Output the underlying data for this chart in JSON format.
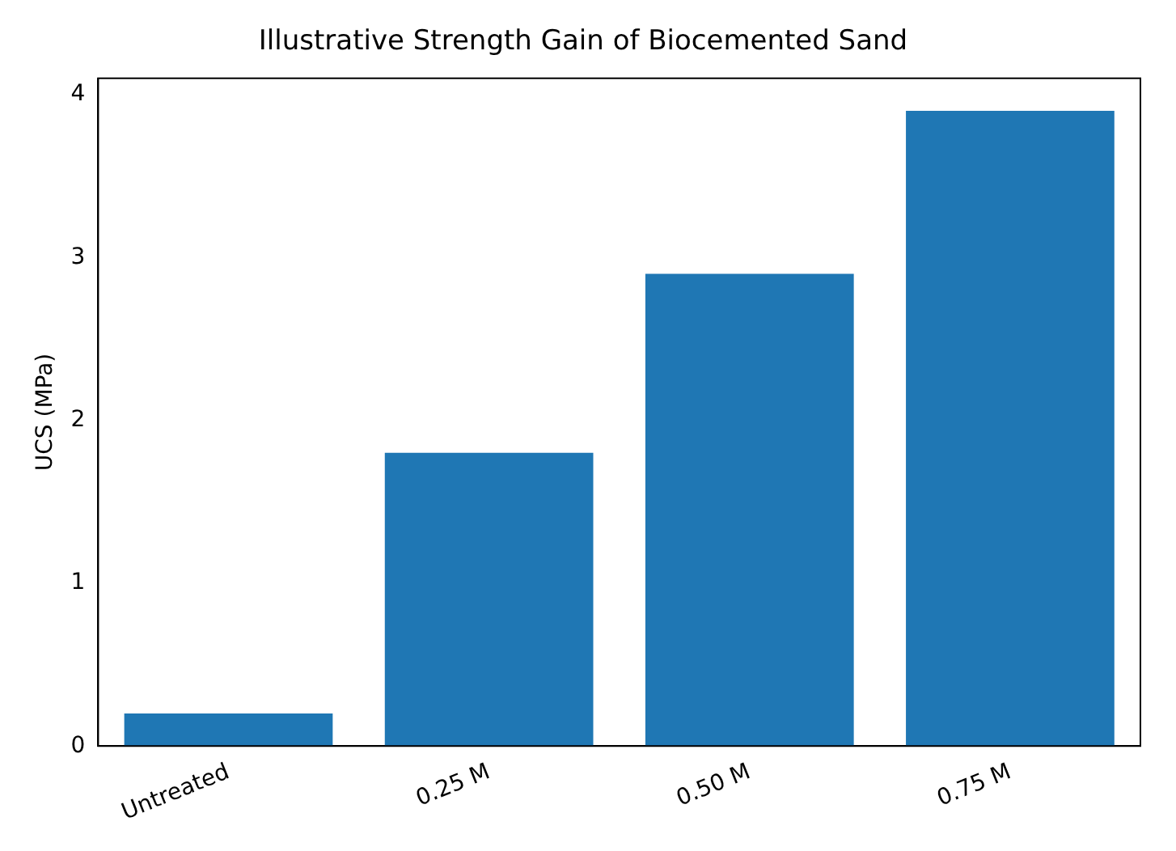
{
  "chart_data": {
    "type": "bar",
    "title": "Illustrative Strength Gain of Biocemented Sand",
    "ylabel": "UCS (MPa)",
    "categories": [
      "Untreated",
      "0.25 M",
      "0.50 M",
      "0.75 M"
    ],
    "values": [
      0.2,
      1.8,
      2.9,
      3.9
    ],
    "color": "#1f77b4",
    "ylim": [
      0,
      4.1
    ],
    "yticks": [
      0,
      1,
      2,
      3,
      4
    ],
    "grid": false,
    "legend": false
  }
}
